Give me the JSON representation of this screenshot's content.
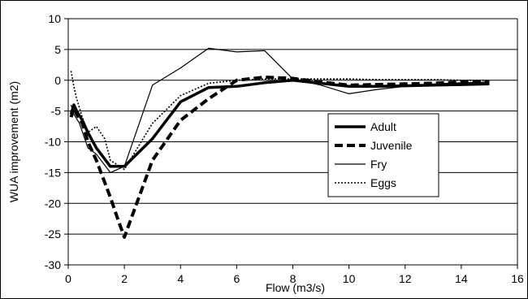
{
  "chart_data": {
    "type": "line",
    "xlabel": "Flow (m3/s)",
    "ylabel": "WUA improvement (m2)",
    "xlim": [
      0,
      16
    ],
    "ylim": [
      -30,
      10
    ],
    "x_ticks": [
      "0",
      "2",
      "4",
      "6",
      "8",
      "10",
      "12",
      "14",
      "16"
    ],
    "y_ticks": [
      "10",
      "5",
      "0",
      "-5",
      "-10",
      "-15",
      "-20",
      "-25",
      "-30"
    ],
    "grid": "horizontal",
    "legend_position": "inside-right",
    "series": [
      {
        "name": "Adult",
        "style": "solid-thick",
        "color": "#000000",
        "x": [
          0.1,
          0.2,
          0.3,
          0.5,
          0.7,
          1.0,
          1.5,
          2.0,
          3.0,
          4.0,
          5.0,
          6.0,
          7.0,
          8.0,
          9.0,
          10.0,
          11.0,
          12.0,
          13.0,
          14.0,
          15.0
        ],
        "y": [
          -5.5,
          -4.0,
          -5.0,
          -6.5,
          -8.5,
          -11.0,
          -14.0,
          -14.0,
          -9.5,
          -3.5,
          -1.2,
          -1.0,
          -0.4,
          0.0,
          -0.5,
          -1.0,
          -1.0,
          -0.9,
          -0.8,
          -0.7,
          -0.6
        ]
      },
      {
        "name": "Juvenile",
        "style": "dashed-thick",
        "color": "#000000",
        "x": [
          0.1,
          0.2,
          0.3,
          0.5,
          0.7,
          1.0,
          1.5,
          1.8,
          2.0,
          3.0,
          4.0,
          5.0,
          6.0,
          7.0,
          8.0,
          9.0,
          10.0,
          11.0,
          12.0,
          13.0,
          14.0,
          15.0
        ],
        "y": [
          -6.0,
          -4.5,
          -5.5,
          -7.0,
          -10.0,
          -13.0,
          -19.0,
          -23.0,
          -25.5,
          -13.0,
          -6.5,
          -3.0,
          0.0,
          0.5,
          0.3,
          -0.3,
          -0.8,
          -0.7,
          -0.6,
          -0.5,
          -0.3,
          -0.3
        ]
      },
      {
        "name": "Fry",
        "style": "solid-thin",
        "color": "#000000",
        "x": [
          0.1,
          0.2,
          0.4,
          0.7,
          1.0,
          1.5,
          2.0,
          3.0,
          4.0,
          5.0,
          6.0,
          7.0,
          8.0,
          9.0,
          10.0,
          11.0,
          12.0,
          13.0,
          14.0,
          15.0
        ],
        "y": [
          -4.0,
          -5.5,
          -7.0,
          -11.0,
          -12.0,
          -15.0,
          -14.0,
          -0.8,
          2.0,
          5.2,
          4.6,
          4.8,
          0.2,
          -0.8,
          -2.2,
          -1.5,
          -1.0,
          -0.6,
          -0.4,
          -0.3
        ]
      },
      {
        "name": "Eggs",
        "style": "dotted",
        "color": "#000000",
        "x": [
          0.1,
          0.2,
          0.3,
          0.5,
          0.7,
          1.0,
          1.3,
          1.5,
          2.0,
          3.0,
          4.0,
          5.0,
          6.0,
          7.0,
          8.0,
          9.0,
          10.0,
          11.0,
          12.0,
          13.0,
          14.0,
          15.0
        ],
        "y": [
          1.5,
          -1.0,
          -3.0,
          -6.0,
          -8.5,
          -7.5,
          -9.5,
          -13.0,
          -14.5,
          -7.0,
          -2.5,
          -0.5,
          0.0,
          0.2,
          0.2,
          0.2,
          0.2,
          0.1,
          0.1,
          0.1,
          0.0,
          0.0
        ]
      }
    ]
  }
}
